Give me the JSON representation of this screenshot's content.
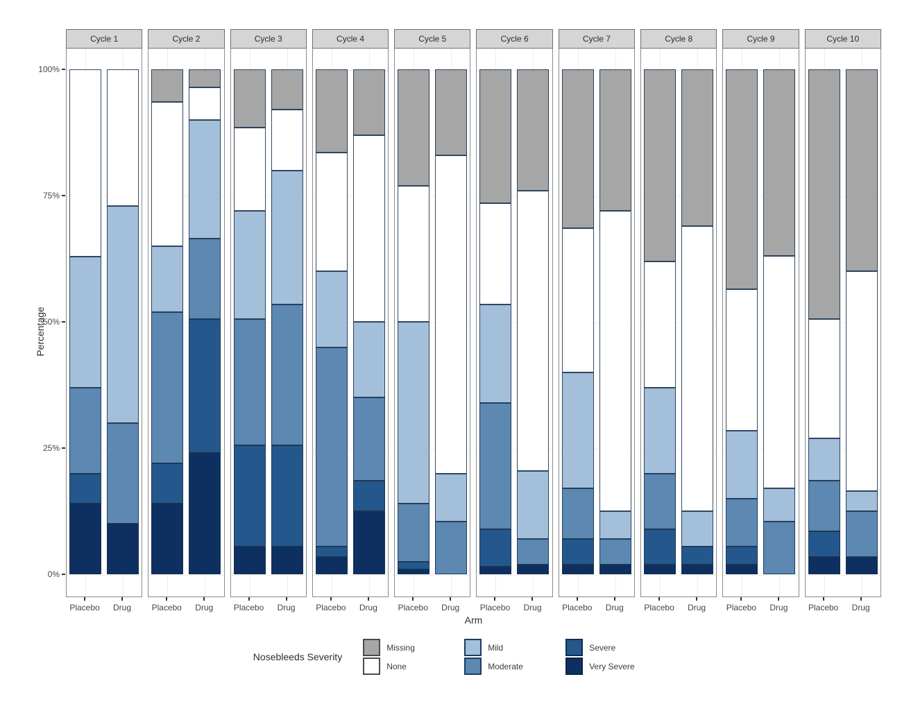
{
  "axes": {
    "y_title": "Percentage",
    "x_title": "Arm",
    "y_ticks": [
      {
        "label": "0%",
        "value": 0
      },
      {
        "label": "25%",
        "value": 25
      },
      {
        "label": "50%",
        "value": 50
      },
      {
        "label": "75%",
        "value": 75
      },
      {
        "label": "100%",
        "value": 100
      }
    ],
    "x_categories": [
      "Placebo",
      "Drug"
    ]
  },
  "legend": {
    "title": "Nosebleeds Severity",
    "columns": [
      [
        {
          "label": "Missing",
          "color": "#a6a6a6",
          "border": "#4a4a4a"
        },
        {
          "label": "None",
          "color": "#ffffff",
          "border": "#4a4a4a"
        }
      ],
      [
        {
          "label": "Mild",
          "color": "#a3bfd9",
          "border": "#1c3c63"
        },
        {
          "label": "Moderate",
          "color": "#5c88b2",
          "border": "#1c3c63"
        }
      ],
      [
        {
          "label": "Severe",
          "color": "#24588c",
          "border": "#122c52"
        },
        {
          "label": "Very Severe",
          "color": "#0d3060",
          "border": "#0a2342"
        }
      ]
    ]
  },
  "chart_data": {
    "type": "bar",
    "stacked": true,
    "unit": "percent",
    "ylim": [
      0,
      100
    ],
    "grid": "light horizontal and vertical major gridlines",
    "legend_position": "bottom",
    "facets": [
      "Cycle 1",
      "Cycle 2",
      "Cycle 3",
      "Cycle 4",
      "Cycle 5",
      "Cycle 6",
      "Cycle 7",
      "Cycle 8",
      "Cycle 9",
      "Cycle 10"
    ],
    "categories": [
      "Placebo",
      "Drug"
    ],
    "stack_order_bottom_to_top": [
      "Very Severe",
      "Severe",
      "Moderate",
      "Mild",
      "None",
      "Missing"
    ],
    "series": [
      {
        "name": "Very Severe",
        "color": "#0d3060",
        "values": {
          "Placebo": [
            14,
            14,
            5.5,
            3.5,
            1,
            1.5,
            2,
            2,
            2,
            3.5
          ],
          "Drug": [
            10,
            24,
            5.5,
            12.5,
            0,
            2,
            2,
            2,
            0,
            3.5
          ]
        }
      },
      {
        "name": "Severe",
        "color": "#24588c",
        "values": {
          "Placebo": [
            6,
            8,
            20,
            2,
            1.5,
            7.5,
            5,
            7,
            3.5,
            5
          ],
          "Drug": [
            0,
            26.5,
            20,
            6,
            0,
            0,
            0,
            3.5,
            0,
            0
          ]
        }
      },
      {
        "name": "Moderate",
        "color": "#5c88b2",
        "values": {
          "Placebo": [
            17,
            30,
            25,
            39.5,
            11.5,
            25,
            10,
            11,
            9.5,
            10
          ],
          "Drug": [
            20,
            16,
            28,
            16.5,
            10.5,
            5,
            5,
            0,
            10.5,
            9
          ]
        }
      },
      {
        "name": "Mild",
        "color": "#a3bfd9",
        "values": {
          "Placebo": [
            26,
            13,
            21.5,
            15,
            36,
            19.5,
            23,
            17,
            13.5,
            8.5
          ],
          "Drug": [
            43,
            23.5,
            26.5,
            15,
            9.5,
            13.5,
            5.5,
            7,
            6.5,
            4
          ]
        }
      },
      {
        "name": "None",
        "color": "#ffffff",
        "values": {
          "Placebo": [
            37,
            28.5,
            16.5,
            23.5,
            27,
            20,
            28.5,
            25,
            28,
            23.5
          ],
          "Drug": [
            27,
            6.5,
            12,
            37,
            63,
            55.5,
            59.5,
            56.5,
            46,
            43.5
          ]
        }
      },
      {
        "name": "Missing",
        "color": "#a6a6a6",
        "values": {
          "Placebo": [
            0,
            6.5,
            11.5,
            16.5,
            23,
            26.5,
            31.5,
            38,
            43.5,
            49.5
          ],
          "Drug": [
            0,
            3.5,
            8,
            13,
            17,
            24,
            28,
            31,
            37,
            40
          ]
        }
      }
    ]
  }
}
